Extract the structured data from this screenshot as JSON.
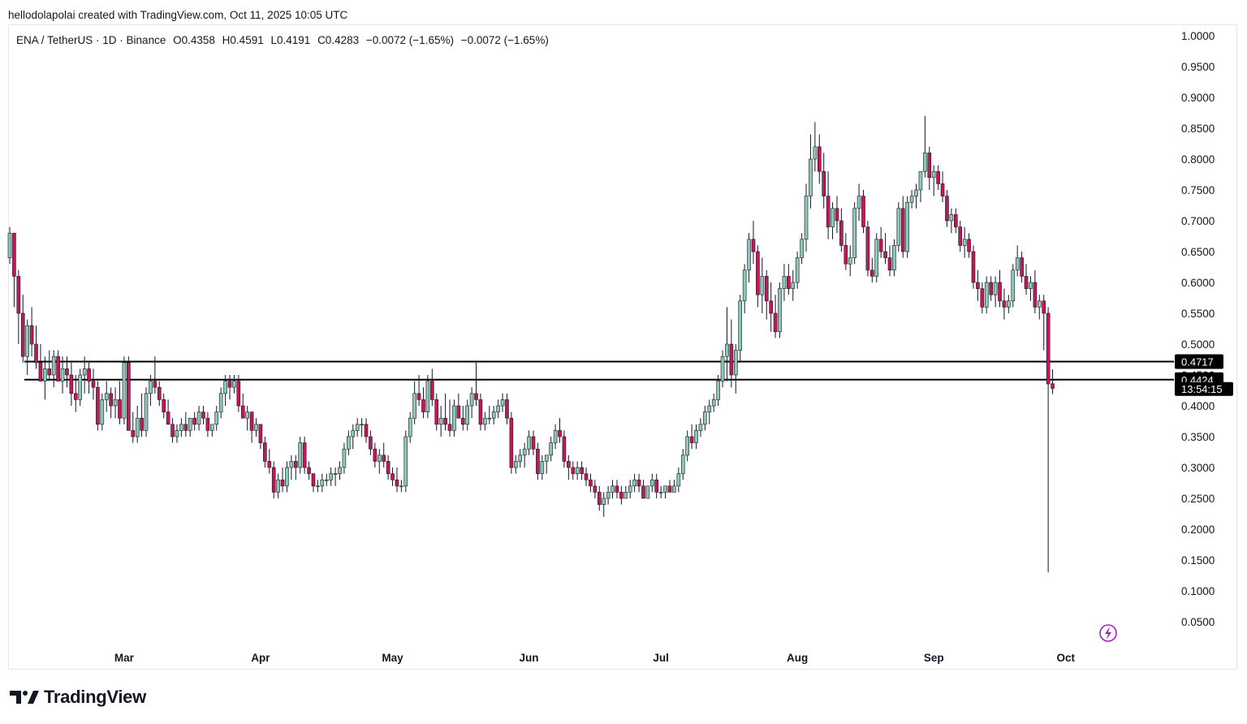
{
  "attribution": "hellodolapolai created with TradingView.com, Oct 11, 2025 10:05 UTC",
  "legend": {
    "symbol": "ENA / TetherUS · 1D · Binance",
    "open": "O0.4358",
    "high": "H0.4591",
    "low": "L0.4191",
    "close": "C0.4283",
    "change1": "−0.0072 (−1.65%)",
    "change2": "−0.0072 (−1.65%)"
  },
  "logo": {
    "text": "TradingView",
    "icon": "tradingview-logo-icon"
  },
  "colors": {
    "up": "#8fc8bb",
    "down": "#c2185b",
    "wick": "#131722",
    "tag_bg": "#000000",
    "bolt": "#9c27b0"
  },
  "chart_data": {
    "type": "candlestick",
    "y_ticks": [
      "1.0000",
      "0.9500",
      "0.9000",
      "0.8500",
      "0.8000",
      "0.7500",
      "0.7000",
      "0.6500",
      "0.6000",
      "0.5500",
      "0.5000",
      "0.4500",
      "0.4000",
      "0.3500",
      "0.3000",
      "0.2500",
      "0.2000",
      "0.1500",
      "0.1000",
      "0.0500"
    ],
    "ylim": [
      0.0,
      1.05
    ],
    "x_range": [
      "2025-02-03",
      "2025-11-03"
    ],
    "month_ticks": [
      {
        "label": "Mar",
        "date": "2025-03-01"
      },
      {
        "label": "Apr",
        "date": "2025-04-01"
      },
      {
        "label": "May",
        "date": "2025-05-01"
      },
      {
        "label": "Jun",
        "date": "2025-06-01"
      },
      {
        "label": "Jul",
        "date": "2025-07-01"
      },
      {
        "label": "Aug",
        "date": "2025-08-01"
      },
      {
        "label": "Sep",
        "date": "2025-09-01"
      },
      {
        "label": "Oct",
        "date": "2025-10-01"
      }
    ],
    "first_date": "2025-02-03",
    "candles": [
      [
        0.64,
        0.69,
        0.63,
        0.68
      ],
      [
        0.68,
        0.68,
        0.56,
        0.61
      ],
      [
        0.61,
        0.62,
        0.5,
        0.55
      ],
      [
        0.55,
        0.58,
        0.47,
        0.48
      ],
      [
        0.48,
        0.54,
        0.45,
        0.53
      ],
      [
        0.53,
        0.56,
        0.48,
        0.5
      ],
      [
        0.5,
        0.53,
        0.46,
        0.47
      ],
      [
        0.47,
        0.5,
        0.44,
        0.44
      ],
      [
        0.44,
        0.48,
        0.41,
        0.46
      ],
      [
        0.46,
        0.49,
        0.44,
        0.45
      ],
      [
        0.45,
        0.49,
        0.43,
        0.48
      ],
      [
        0.48,
        0.49,
        0.44,
        0.44
      ],
      [
        0.44,
        0.48,
        0.42,
        0.46
      ],
      [
        0.46,
        0.48,
        0.43,
        0.45
      ],
      [
        0.45,
        0.47,
        0.4,
        0.42
      ],
      [
        0.42,
        0.45,
        0.39,
        0.41
      ],
      [
        0.41,
        0.46,
        0.4,
        0.45
      ],
      [
        0.45,
        0.48,
        0.42,
        0.46
      ],
      [
        0.46,
        0.47,
        0.42,
        0.44
      ],
      [
        0.44,
        0.46,
        0.41,
        0.43
      ],
      [
        0.43,
        0.44,
        0.36,
        0.37
      ],
      [
        0.37,
        0.42,
        0.36,
        0.41
      ],
      [
        0.41,
        0.44,
        0.39,
        0.42
      ],
      [
        0.42,
        0.43,
        0.38,
        0.4
      ],
      [
        0.4,
        0.43,
        0.38,
        0.41
      ],
      [
        0.41,
        0.44,
        0.37,
        0.38
      ],
      [
        0.38,
        0.48,
        0.37,
        0.47
      ],
      [
        0.47,
        0.48,
        0.36,
        0.36
      ],
      [
        0.36,
        0.39,
        0.34,
        0.35
      ],
      [
        0.35,
        0.4,
        0.34,
        0.38
      ],
      [
        0.38,
        0.42,
        0.35,
        0.36
      ],
      [
        0.36,
        0.43,
        0.35,
        0.42
      ],
      [
        0.42,
        0.45,
        0.4,
        0.44
      ],
      [
        0.44,
        0.48,
        0.42,
        0.43
      ],
      [
        0.43,
        0.44,
        0.4,
        0.41
      ],
      [
        0.41,
        0.42,
        0.38,
        0.39
      ],
      [
        0.39,
        0.41,
        0.37,
        0.37
      ],
      [
        0.37,
        0.38,
        0.34,
        0.35
      ],
      [
        0.35,
        0.37,
        0.34,
        0.36
      ],
      [
        0.36,
        0.38,
        0.35,
        0.37
      ],
      [
        0.37,
        0.39,
        0.35,
        0.36
      ],
      [
        0.36,
        0.38,
        0.35,
        0.38
      ],
      [
        0.38,
        0.39,
        0.36,
        0.37
      ],
      [
        0.37,
        0.4,
        0.36,
        0.39
      ],
      [
        0.39,
        0.4,
        0.37,
        0.38
      ],
      [
        0.38,
        0.39,
        0.35,
        0.36
      ],
      [
        0.36,
        0.37,
        0.35,
        0.37
      ],
      [
        0.37,
        0.4,
        0.36,
        0.39
      ],
      [
        0.39,
        0.43,
        0.38,
        0.42
      ],
      [
        0.42,
        0.45,
        0.4,
        0.44
      ],
      [
        0.44,
        0.45,
        0.41,
        0.43
      ],
      [
        0.43,
        0.45,
        0.42,
        0.44
      ],
      [
        0.44,
        0.45,
        0.39,
        0.4
      ],
      [
        0.4,
        0.42,
        0.38,
        0.38
      ],
      [
        0.38,
        0.4,
        0.36,
        0.39
      ],
      [
        0.39,
        0.39,
        0.34,
        0.36
      ],
      [
        0.36,
        0.38,
        0.35,
        0.37
      ],
      [
        0.37,
        0.37,
        0.33,
        0.34
      ],
      [
        0.34,
        0.35,
        0.3,
        0.31
      ],
      [
        0.31,
        0.33,
        0.29,
        0.3
      ],
      [
        0.3,
        0.31,
        0.25,
        0.26
      ],
      [
        0.26,
        0.29,
        0.25,
        0.28
      ],
      [
        0.28,
        0.3,
        0.26,
        0.27
      ],
      [
        0.27,
        0.31,
        0.26,
        0.3
      ],
      [
        0.3,
        0.32,
        0.28,
        0.31
      ],
      [
        0.31,
        0.32,
        0.28,
        0.3
      ],
      [
        0.3,
        0.35,
        0.29,
        0.34
      ],
      [
        0.34,
        0.35,
        0.29,
        0.3
      ],
      [
        0.3,
        0.31,
        0.28,
        0.29
      ],
      [
        0.29,
        0.29,
        0.26,
        0.27
      ],
      [
        0.27,
        0.28,
        0.26,
        0.27
      ],
      [
        0.27,
        0.29,
        0.26,
        0.28
      ],
      [
        0.28,
        0.29,
        0.27,
        0.28
      ],
      [
        0.28,
        0.3,
        0.27,
        0.29
      ],
      [
        0.29,
        0.3,
        0.27,
        0.29
      ],
      [
        0.29,
        0.31,
        0.28,
        0.3
      ],
      [
        0.3,
        0.34,
        0.29,
        0.33
      ],
      [
        0.33,
        0.36,
        0.32,
        0.35
      ],
      [
        0.35,
        0.37,
        0.33,
        0.36
      ],
      [
        0.36,
        0.38,
        0.35,
        0.37
      ],
      [
        0.37,
        0.38,
        0.35,
        0.37
      ],
      [
        0.37,
        0.38,
        0.34,
        0.35
      ],
      [
        0.35,
        0.36,
        0.32,
        0.33
      ],
      [
        0.33,
        0.34,
        0.3,
        0.31
      ],
      [
        0.31,
        0.33,
        0.29,
        0.32
      ],
      [
        0.32,
        0.34,
        0.3,
        0.31
      ],
      [
        0.31,
        0.32,
        0.28,
        0.29
      ],
      [
        0.29,
        0.3,
        0.27,
        0.28
      ],
      [
        0.28,
        0.3,
        0.26,
        0.27
      ],
      [
        0.27,
        0.28,
        0.26,
        0.27
      ],
      [
        0.27,
        0.36,
        0.26,
        0.35
      ],
      [
        0.35,
        0.39,
        0.34,
        0.38
      ],
      [
        0.38,
        0.44,
        0.37,
        0.42
      ],
      [
        0.42,
        0.45,
        0.4,
        0.41
      ],
      [
        0.41,
        0.43,
        0.38,
        0.39
      ],
      [
        0.39,
        0.45,
        0.38,
        0.44
      ],
      [
        0.44,
        0.46,
        0.4,
        0.41
      ],
      [
        0.41,
        0.42,
        0.36,
        0.37
      ],
      [
        0.37,
        0.4,
        0.35,
        0.38
      ],
      [
        0.38,
        0.42,
        0.36,
        0.37
      ],
      [
        0.37,
        0.41,
        0.35,
        0.36
      ],
      [
        0.36,
        0.41,
        0.35,
        0.4
      ],
      [
        0.4,
        0.42,
        0.38,
        0.38
      ],
      [
        0.38,
        0.4,
        0.36,
        0.37
      ],
      [
        0.37,
        0.41,
        0.36,
        0.4
      ],
      [
        0.4,
        0.43,
        0.38,
        0.42
      ],
      [
        0.42,
        0.47,
        0.4,
        0.41
      ],
      [
        0.41,
        0.42,
        0.36,
        0.37
      ],
      [
        0.37,
        0.39,
        0.36,
        0.38
      ],
      [
        0.38,
        0.4,
        0.37,
        0.38
      ],
      [
        0.38,
        0.4,
        0.37,
        0.39
      ],
      [
        0.39,
        0.41,
        0.38,
        0.4
      ],
      [
        0.4,
        0.42,
        0.39,
        0.41
      ],
      [
        0.41,
        0.42,
        0.37,
        0.38
      ],
      [
        0.38,
        0.39,
        0.29,
        0.3
      ],
      [
        0.3,
        0.32,
        0.29,
        0.31
      ],
      [
        0.31,
        0.33,
        0.3,
        0.32
      ],
      [
        0.32,
        0.34,
        0.3,
        0.33
      ],
      [
        0.33,
        0.36,
        0.32,
        0.35
      ],
      [
        0.35,
        0.36,
        0.32,
        0.33
      ],
      [
        0.33,
        0.34,
        0.28,
        0.29
      ],
      [
        0.29,
        0.32,
        0.28,
        0.31
      ],
      [
        0.31,
        0.32,
        0.29,
        0.32
      ],
      [
        0.32,
        0.35,
        0.31,
        0.34
      ],
      [
        0.34,
        0.37,
        0.33,
        0.36
      ],
      [
        0.36,
        0.38,
        0.34,
        0.35
      ],
      [
        0.35,
        0.36,
        0.3,
        0.31
      ],
      [
        0.31,
        0.32,
        0.28,
        0.3
      ],
      [
        0.3,
        0.31,
        0.28,
        0.29
      ],
      [
        0.29,
        0.31,
        0.28,
        0.3
      ],
      [
        0.3,
        0.31,
        0.28,
        0.29
      ],
      [
        0.29,
        0.3,
        0.27,
        0.28
      ],
      [
        0.28,
        0.29,
        0.26,
        0.27
      ],
      [
        0.27,
        0.28,
        0.25,
        0.26
      ],
      [
        0.26,
        0.27,
        0.23,
        0.24
      ],
      [
        0.24,
        0.26,
        0.22,
        0.25
      ],
      [
        0.25,
        0.27,
        0.24,
        0.26
      ],
      [
        0.26,
        0.28,
        0.25,
        0.27
      ],
      [
        0.27,
        0.28,
        0.25,
        0.26
      ],
      [
        0.26,
        0.27,
        0.24,
        0.25
      ],
      [
        0.25,
        0.27,
        0.25,
        0.26
      ],
      [
        0.26,
        0.28,
        0.25,
        0.27
      ],
      [
        0.27,
        0.29,
        0.26,
        0.28
      ],
      [
        0.28,
        0.29,
        0.26,
        0.27
      ],
      [
        0.27,
        0.28,
        0.25,
        0.25
      ],
      [
        0.25,
        0.27,
        0.25,
        0.27
      ],
      [
        0.27,
        0.29,
        0.26,
        0.28
      ],
      [
        0.28,
        0.29,
        0.25,
        0.26
      ],
      [
        0.26,
        0.27,
        0.25,
        0.26
      ],
      [
        0.26,
        0.27,
        0.25,
        0.27
      ],
      [
        0.27,
        0.28,
        0.26,
        0.26
      ],
      [
        0.26,
        0.28,
        0.26,
        0.27
      ],
      [
        0.27,
        0.3,
        0.26,
        0.29
      ],
      [
        0.29,
        0.33,
        0.28,
        0.32
      ],
      [
        0.32,
        0.36,
        0.31,
        0.35
      ],
      [
        0.35,
        0.37,
        0.33,
        0.34
      ],
      [
        0.34,
        0.37,
        0.33,
        0.36
      ],
      [
        0.36,
        0.38,
        0.35,
        0.37
      ],
      [
        0.37,
        0.4,
        0.36,
        0.39
      ],
      [
        0.39,
        0.41,
        0.37,
        0.4
      ],
      [
        0.4,
        0.42,
        0.39,
        0.41
      ],
      [
        0.41,
        0.45,
        0.4,
        0.44
      ],
      [
        0.44,
        0.49,
        0.43,
        0.48
      ],
      [
        0.48,
        0.56,
        0.44,
        0.5
      ],
      [
        0.5,
        0.54,
        0.43,
        0.45
      ],
      [
        0.45,
        0.5,
        0.42,
        0.49
      ],
      [
        0.49,
        0.58,
        0.47,
        0.57
      ],
      [
        0.57,
        0.63,
        0.55,
        0.62
      ],
      [
        0.62,
        0.68,
        0.6,
        0.67
      ],
      [
        0.67,
        0.7,
        0.63,
        0.65
      ],
      [
        0.65,
        0.66,
        0.56,
        0.58
      ],
      [
        0.58,
        0.64,
        0.55,
        0.61
      ],
      [
        0.61,
        0.62,
        0.54,
        0.57
      ],
      [
        0.57,
        0.6,
        0.52,
        0.55
      ],
      [
        0.55,
        0.58,
        0.51,
        0.52
      ],
      [
        0.52,
        0.6,
        0.51,
        0.59
      ],
      [
        0.59,
        0.63,
        0.57,
        0.61
      ],
      [
        0.61,
        0.63,
        0.58,
        0.59
      ],
      [
        0.59,
        0.62,
        0.57,
        0.6
      ],
      [
        0.6,
        0.65,
        0.59,
        0.64
      ],
      [
        0.64,
        0.68,
        0.63,
        0.67
      ],
      [
        0.67,
        0.76,
        0.65,
        0.74
      ],
      [
        0.74,
        0.84,
        0.72,
        0.8
      ],
      [
        0.8,
        0.86,
        0.78,
        0.82
      ],
      [
        0.82,
        0.84,
        0.76,
        0.78
      ],
      [
        0.78,
        0.81,
        0.72,
        0.74
      ],
      [
        0.74,
        0.78,
        0.67,
        0.69
      ],
      [
        0.69,
        0.73,
        0.67,
        0.72
      ],
      [
        0.72,
        0.74,
        0.68,
        0.7
      ],
      [
        0.7,
        0.72,
        0.65,
        0.66
      ],
      [
        0.66,
        0.68,
        0.62,
        0.63
      ],
      [
        0.63,
        0.66,
        0.61,
        0.64
      ],
      [
        0.64,
        0.73,
        0.63,
        0.72
      ],
      [
        0.72,
        0.76,
        0.7,
        0.74
      ],
      [
        0.74,
        0.75,
        0.68,
        0.69
      ],
      [
        0.69,
        0.7,
        0.61,
        0.62
      ],
      [
        0.62,
        0.64,
        0.6,
        0.61
      ],
      [
        0.61,
        0.68,
        0.6,
        0.67
      ],
      [
        0.67,
        0.69,
        0.64,
        0.65
      ],
      [
        0.65,
        0.68,
        0.63,
        0.64
      ],
      [
        0.64,
        0.66,
        0.61,
        0.62
      ],
      [
        0.62,
        0.67,
        0.61,
        0.66
      ],
      [
        0.66,
        0.73,
        0.65,
        0.72
      ],
      [
        0.72,
        0.74,
        0.64,
        0.65
      ],
      [
        0.65,
        0.74,
        0.64,
        0.73
      ],
      [
        0.73,
        0.75,
        0.72,
        0.74
      ],
      [
        0.74,
        0.76,
        0.72,
        0.75
      ],
      [
        0.75,
        0.77,
        0.73,
        0.78
      ],
      [
        0.78,
        0.87,
        0.77,
        0.81
      ],
      [
        0.81,
        0.82,
        0.75,
        0.77
      ],
      [
        0.77,
        0.79,
        0.74,
        0.78
      ],
      [
        0.78,
        0.79,
        0.75,
        0.76
      ],
      [
        0.76,
        0.78,
        0.73,
        0.74
      ],
      [
        0.74,
        0.75,
        0.69,
        0.7
      ],
      [
        0.7,
        0.72,
        0.68,
        0.71
      ],
      [
        0.71,
        0.72,
        0.68,
        0.69
      ],
      [
        0.69,
        0.7,
        0.65,
        0.66
      ],
      [
        0.66,
        0.69,
        0.64,
        0.67
      ],
      [
        0.67,
        0.68,
        0.64,
        0.65
      ],
      [
        0.65,
        0.66,
        0.59,
        0.6
      ],
      [
        0.6,
        0.62,
        0.57,
        0.59
      ],
      [
        0.59,
        0.6,
        0.55,
        0.56
      ],
      [
        0.56,
        0.61,
        0.55,
        0.6
      ],
      [
        0.6,
        0.61,
        0.57,
        0.58
      ],
      [
        0.58,
        0.61,
        0.56,
        0.6
      ],
      [
        0.6,
        0.62,
        0.56,
        0.57
      ],
      [
        0.57,
        0.59,
        0.54,
        0.56
      ],
      [
        0.56,
        0.58,
        0.55,
        0.57
      ],
      [
        0.57,
        0.63,
        0.56,
        0.62
      ],
      [
        0.62,
        0.66,
        0.61,
        0.64
      ],
      [
        0.64,
        0.65,
        0.6,
        0.61
      ],
      [
        0.61,
        0.63,
        0.58,
        0.59
      ],
      [
        0.59,
        0.61,
        0.57,
        0.6
      ],
      [
        0.6,
        0.62,
        0.55,
        0.56
      ],
      [
        0.56,
        0.58,
        0.54,
        0.57
      ],
      [
        0.57,
        0.58,
        0.49,
        0.55
      ],
      [
        0.55,
        0.56,
        0.13,
        0.4355
      ],
      [
        0.4358,
        0.4591,
        0.4191,
        0.4283
      ]
    ],
    "hlines": [
      {
        "value": 0.4717,
        "label": "0.4717"
      },
      {
        "value": 0.4424,
        "label": "0.4424"
      }
    ],
    "countdown": "13:54:15"
  }
}
